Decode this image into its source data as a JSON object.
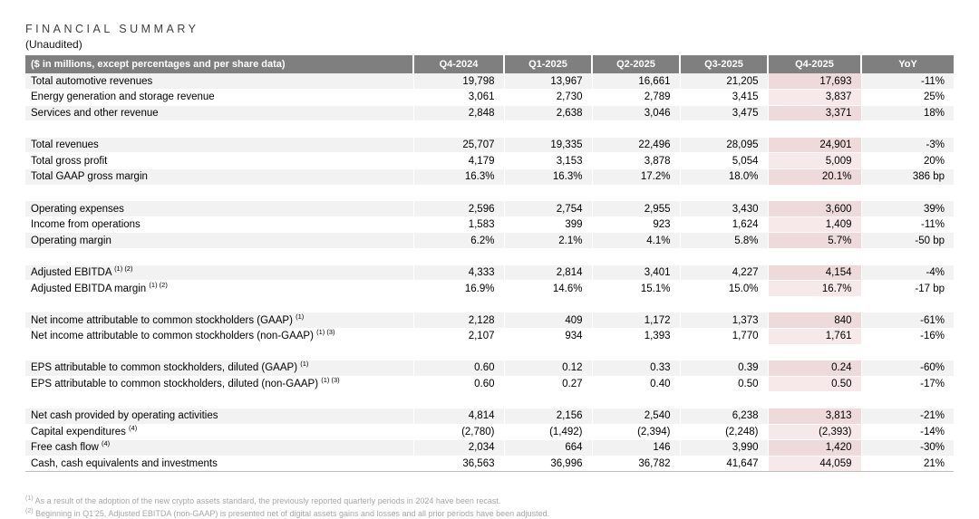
{
  "title": "FINANCIAL SUMMARY",
  "subtitle": "(Unaudited)",
  "colors": {
    "header_bg": "#7f7f7f",
    "row_alt": "#f2f2f2",
    "highlight_on_alt": "#eedada",
    "highlight_on_white": "#f7e9e9",
    "footnote_text": "#a6a6a6"
  },
  "table": {
    "header": [
      "($ in millions, except percentages and per share data)",
      "Q4-2024",
      "Q1-2025",
      "Q2-2025",
      "Q3-2025",
      "Q4-2025",
      "YoY"
    ],
    "highlighted_column": "Q4-2025",
    "sections": [
      {
        "rows": [
          {
            "label": "Total automotive revenues",
            "sup": "",
            "values": [
              "19,798",
              "13,967",
              "16,661",
              "21,205",
              "17,693",
              "-11%"
            ]
          },
          {
            "label": "Energy generation and storage revenue",
            "sup": "",
            "values": [
              "3,061",
              "2,730",
              "2,789",
              "3,415",
              "3,837",
              "25%"
            ]
          },
          {
            "label": "Services and other revenue",
            "sup": "",
            "values": [
              "2,848",
              "2,638",
              "3,046",
              "3,475",
              "3,371",
              "18%"
            ]
          }
        ]
      },
      {
        "rows": [
          {
            "label": "Total revenues",
            "sup": "",
            "values": [
              "25,707",
              "19,335",
              "22,496",
              "28,095",
              "24,901",
              "-3%"
            ]
          },
          {
            "label": "Total gross profit",
            "sup": "",
            "values": [
              "4,179",
              "3,153",
              "3,878",
              "5,054",
              "5,009",
              "20%"
            ]
          },
          {
            "label": "Total GAAP gross margin",
            "sup": "",
            "values": [
              "16.3%",
              "16.3%",
              "17.2%",
              "18.0%",
              "20.1%",
              "386 bp"
            ]
          }
        ]
      },
      {
        "rows": [
          {
            "label": "Operating expenses",
            "sup": "",
            "values": [
              "2,596",
              "2,754",
              "2,955",
              "3,430",
              "3,600",
              "39%"
            ]
          },
          {
            "label": "Income from operations",
            "sup": "",
            "values": [
              "1,583",
              "399",
              "923",
              "1,624",
              "1,409",
              "-11%"
            ]
          },
          {
            "label": "Operating margin",
            "sup": "",
            "values": [
              "6.2%",
              "2.1%",
              "4.1%",
              "5.8%",
              "5.7%",
              "-50 bp"
            ]
          }
        ]
      },
      {
        "rows": [
          {
            "label": "Adjusted EBITDA",
            "sup": "(1) (2)",
            "values": [
              "4,333",
              "2,814",
              "3,401",
              "4,227",
              "4,154",
              "-4%"
            ]
          },
          {
            "label": "Adjusted EBITDA margin",
            "sup": "(1) (2)",
            "values": [
              "16.9%",
              "14.6%",
              "15.1%",
              "15.0%",
              "16.7%",
              "-17 bp"
            ]
          }
        ]
      },
      {
        "rows": [
          {
            "label": "Net income attributable to common stockholders (GAAP)",
            "sup": "(1)",
            "values": [
              "2,128",
              "409",
              "1,172",
              "1,373",
              "840",
              "-61%"
            ]
          },
          {
            "label": "Net income attributable to common stockholders (non-GAAP)",
            "sup": "(1) (3)",
            "values": [
              "2,107",
              "934",
              "1,393",
              "1,770",
              "1,761",
              "-16%"
            ]
          }
        ]
      },
      {
        "rows": [
          {
            "label": "EPS attributable to common stockholders, diluted (GAAP)",
            "sup": "(1)",
            "values": [
              "0.60",
              "0.12",
              "0.33",
              "0.39",
              "0.24",
              "-60%"
            ]
          },
          {
            "label": "EPS attributable to common stockholders, diluted (non-GAAP)",
            "sup": "(1) (3)",
            "values": [
              "0.60",
              "0.27",
              "0.40",
              "0.50",
              "0.50",
              "-17%"
            ]
          }
        ]
      },
      {
        "rows": [
          {
            "label": "Net cash provided by operating activities",
            "sup": "",
            "values": [
              "4,814",
              "2,156",
              "2,540",
              "6,238",
              "3,813",
              "-21%"
            ]
          },
          {
            "label": "Capital expenditures",
            "sup": "(4)",
            "values": [
              "(2,780)",
              "(1,492)",
              "(2,394)",
              "(2,248)",
              "(2,393)",
              "-14%"
            ]
          },
          {
            "label": "Free cash flow",
            "sup": "(4)",
            "values": [
              "2,034",
              "664",
              "146",
              "3,990",
              "1,420",
              "-30%"
            ]
          },
          {
            "label": "Cash, cash equivalents and investments",
            "sup": "",
            "values": [
              "36,563",
              "36,996",
              "36,782",
              "41,647",
              "44,059",
              "21%"
            ]
          }
        ]
      }
    ]
  },
  "footnotes": [
    {
      "sup": "(1)",
      "text": "As a result of the adoption of the new crypto assets standard, the previously reported quarterly periods in 2024 have been recast."
    },
    {
      "sup": "(2)",
      "text": "Beginning in Q1'25, Adjusted EBITDA (non-GAAP) is presented net of digital assets gains and losses and all prior periods have been adjusted."
    }
  ]
}
